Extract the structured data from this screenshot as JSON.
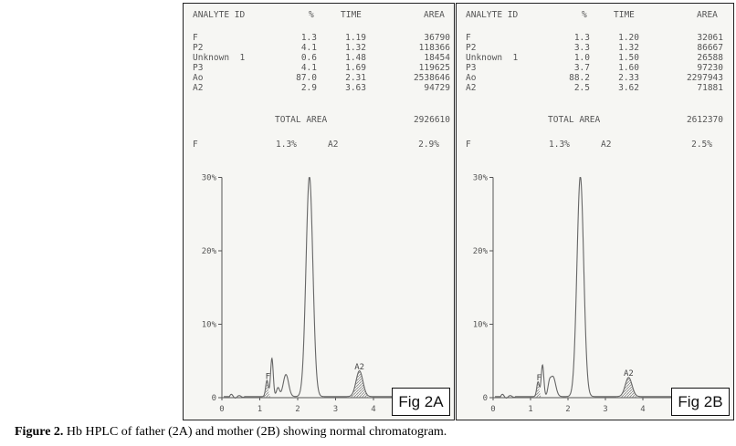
{
  "figure": {
    "caption_label": "Figure 2.",
    "caption_text": " Hb HPLC of father (2A) and mother (2B) showing normal chromatogram."
  },
  "table_headers": {
    "analyte": "ANALYTE ID",
    "pct": "%",
    "time": "TIME",
    "area": "AREA"
  },
  "panels": [
    {
      "label": "Fig 2A",
      "rows": [
        {
          "id": "F",
          "pct": "1.3",
          "time": "1.19",
          "area": "36790"
        },
        {
          "id": "P2",
          "pct": "4.1",
          "time": "1.32",
          "area": "118366"
        },
        {
          "id": "Unknown  1",
          "pct": "0.6",
          "time": "1.48",
          "area": "18454"
        },
        {
          "id": "P3",
          "pct": "4.1",
          "time": "1.69",
          "area": "119625"
        },
        {
          "id": "Ao",
          "pct": "87.0",
          "time": "2.31",
          "area": "2538646"
        },
        {
          "id": "A2",
          "pct": "2.9",
          "time": "3.63",
          "area": "94729"
        }
      ],
      "total_label": "TOTAL AREA",
      "total_value": "2926610",
      "summary": {
        "f_label": "F",
        "f_value": "1.3%",
        "a2_label": "A2",
        "a2_value": "2.9%"
      }
    },
    {
      "label": "Fig 2B",
      "rows": [
        {
          "id": "F",
          "pct": "1.3",
          "time": "1.20",
          "area": "32061"
        },
        {
          "id": "P2",
          "pct": "3.3",
          "time": "1.32",
          "area": "86667"
        },
        {
          "id": "Unknown  1",
          "pct": "1.0",
          "time": "1.50",
          "area": "26588"
        },
        {
          "id": "P3",
          "pct": "3.7",
          "time": "1.60",
          "area": "97230"
        },
        {
          "id": "Ao",
          "pct": "88.2",
          "time": "2.33",
          "area": "2297943"
        },
        {
          "id": "A2",
          "pct": "2.5",
          "time": "3.62",
          "area": "71881"
        }
      ],
      "total_label": "TOTAL AREA",
      "total_value": "2612370",
      "summary": {
        "f_label": "F",
        "f_value": "1.3%",
        "a2_label": "A2",
        "a2_value": "2.5%"
      }
    }
  ],
  "chart_data": [
    {
      "type": "line",
      "x_ticks": [
        "0",
        "1",
        "2",
        "3",
        "4"
      ],
      "y_ticks": [
        "0",
        "10%",
        "20%",
        "30%"
      ],
      "xlim": [
        0,
        5.2
      ],
      "ylim": [
        0,
        30
      ],
      "peak_labels": [
        {
          "text": "F",
          "x": 1.19
        },
        {
          "text": "A2",
          "x": 3.63
        }
      ],
      "peaks": [
        {
          "name": "F",
          "x": 1.19,
          "height": 2.2,
          "width": 0.035
        },
        {
          "name": "P2",
          "x": 1.32,
          "height": 5.2,
          "width": 0.035
        },
        {
          "name": "Unknown 1",
          "x": 1.48,
          "height": 1.2,
          "width": 0.04
        },
        {
          "name": "P3",
          "x": 1.69,
          "height": 3.0,
          "width": 0.07
        },
        {
          "name": "Ao",
          "x": 2.31,
          "height": 30,
          "width": 0.09
        },
        {
          "name": "A2",
          "x": 3.63,
          "height": 3.5,
          "width": 0.09
        }
      ],
      "line_color": "#666666"
    },
    {
      "type": "line",
      "x_ticks": [
        "0",
        "1",
        "2",
        "3",
        "4"
      ],
      "y_ticks": [
        "0",
        "10%",
        "20%",
        "30%"
      ],
      "xlim": [
        0,
        5.2
      ],
      "ylim": [
        0,
        30
      ],
      "peak_labels": [
        {
          "text": "F",
          "x": 1.2
        },
        {
          "text": "A2",
          "x": 3.62
        }
      ],
      "peaks": [
        {
          "name": "F",
          "x": 1.2,
          "height": 2.0,
          "width": 0.035
        },
        {
          "name": "P2",
          "x": 1.32,
          "height": 4.3,
          "width": 0.035
        },
        {
          "name": "Unknown 1",
          "x": 1.5,
          "height": 1.3,
          "width": 0.04
        },
        {
          "name": "P3",
          "x": 1.6,
          "height": 2.7,
          "width": 0.07
        },
        {
          "name": "Ao",
          "x": 2.33,
          "height": 30,
          "width": 0.09
        },
        {
          "name": "A2",
          "x": 3.62,
          "height": 2.6,
          "width": 0.09
        }
      ],
      "line_color": "#666666"
    }
  ]
}
